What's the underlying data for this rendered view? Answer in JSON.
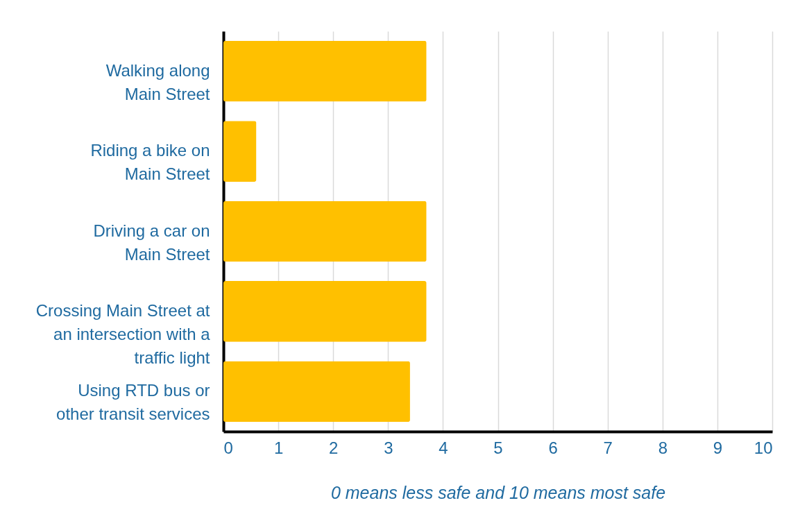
{
  "chart_data": {
    "type": "bar",
    "orientation": "horizontal",
    "categories": [
      "Walking along\nMain Street",
      "Riding a bike on\nMain Street",
      "Driving a car on\nMain Street",
      "Crossing Main Street at\nan intersection with a\ntraffic light",
      "Using RTD bus or\nother transit services"
    ],
    "values": [
      3.7,
      0.6,
      3.7,
      3.7,
      3.4
    ],
    "color": "#ffc000",
    "xlim": [
      0,
      10
    ],
    "xticks": [
      0,
      1,
      2,
      3,
      4,
      5,
      6,
      7,
      8,
      9,
      10
    ],
    "grid": "x",
    "xlabel": "0 means less safe and 10 means most safe"
  }
}
